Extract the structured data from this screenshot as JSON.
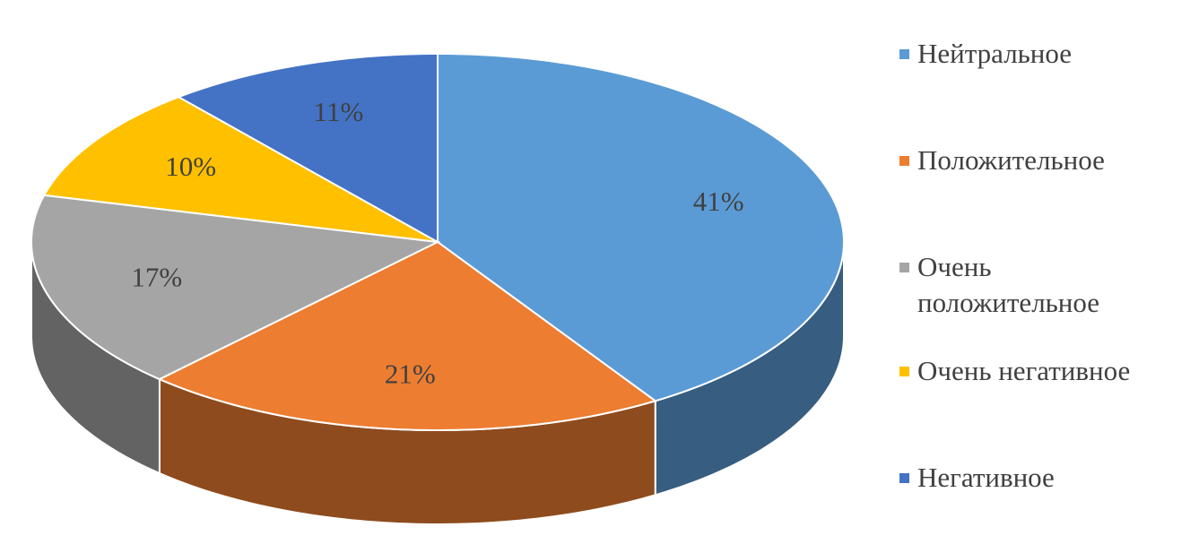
{
  "chart_data": {
    "type": "pie",
    "categories": [
      "Нейтральное",
      "Положительное",
      "Очень положительное",
      "Очень негативное",
      "Негативное"
    ],
    "values": [
      41,
      21,
      17,
      10,
      11
    ],
    "value_labels": [
      "41%",
      "21%",
      "17%",
      "10%",
      "11%"
    ],
    "colors": [
      "#5b9bd5",
      "#ed7d31",
      "#a5a5a5",
      "#ffc000",
      "#4472c4"
    ],
    "legend": "right"
  }
}
